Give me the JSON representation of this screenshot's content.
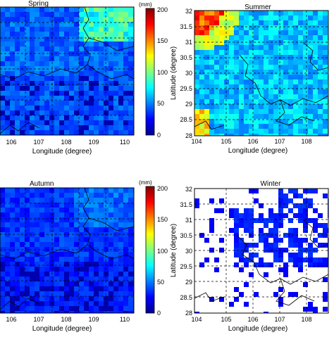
{
  "panels": [
    {
      "id": "spring",
      "title": "Spring",
      "x_label": "Longitude (degree)",
      "y_label": "",
      "x_ticks": [
        "106",
        "107",
        "108",
        "109",
        "110"
      ],
      "y_ticks": [],
      "base_color": "#2a5bd7"
    },
    {
      "id": "summer",
      "title": "Summer",
      "x_label": "Longitude (degree)",
      "y_label": "Latitude (degree)",
      "x_ticks": [
        "104",
        "105",
        "106",
        "107",
        "108"
      ],
      "y_ticks": [
        "32",
        "31.5",
        "31",
        "30.5",
        "30",
        "29.5",
        "29",
        "28.5",
        "28"
      ],
      "base_color": "#3a86e0"
    },
    {
      "id": "autumn",
      "title": "Autumn",
      "x_label": "Longitude (degree)",
      "y_label": "",
      "x_ticks": [
        "106",
        "107",
        "108",
        "109",
        "110"
      ],
      "y_ticks": [],
      "base_color": "#1f3fd0"
    },
    {
      "id": "winter",
      "title": "Winter",
      "x_label": "Longitude (degree)",
      "y_label": "Latitude (degree)",
      "x_ticks": [
        "104",
        "105",
        "106",
        "107",
        "108"
      ],
      "y_ticks": [
        "32",
        "31.5",
        "31",
        "30.5",
        "30",
        "29.5",
        "29",
        "28.5",
        "28"
      ],
      "base_color": "#ffffff"
    }
  ],
  "colorbars": [
    {
      "id": "top",
      "unit": "(mm)",
      "ticks": [
        "200",
        "150",
        "100",
        "50",
        "0"
      ]
    },
    {
      "id": "bottom",
      "unit": "(mm)",
      "ticks": [
        "200",
        "150",
        "100",
        "50",
        "0"
      ]
    }
  ]
}
